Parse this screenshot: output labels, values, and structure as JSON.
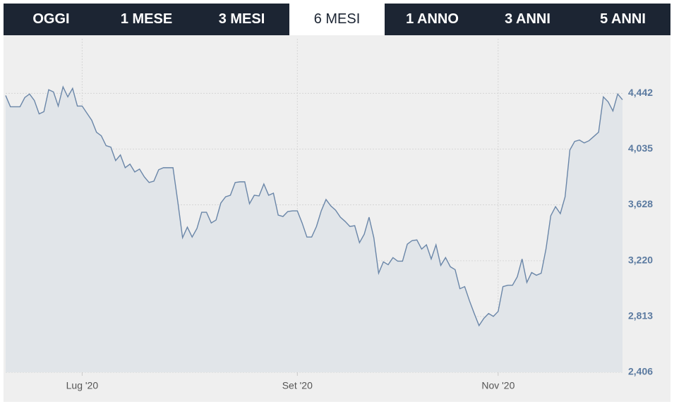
{
  "tabs": [
    "OGGI",
    "1 MESE",
    "3 MESI",
    "6 MESI",
    "1 ANNO",
    "3 ANNI",
    "5 ANNI"
  ],
  "chart_data": {
    "type": "line",
    "categories": [
      null,
      null,
      null,
      null,
      null,
      null,
      null,
      null,
      null,
      null,
      null,
      null,
      null,
      null,
      null,
      null,
      "Lug '20",
      null,
      null,
      null,
      null,
      null,
      null,
      null,
      null,
      null,
      null,
      null,
      null,
      null,
      null,
      null,
      null,
      null,
      null,
      null,
      null,
      null,
      null,
      null,
      null,
      null,
      null,
      null,
      null,
      null,
      null,
      null,
      null,
      null,
      null,
      null,
      null,
      null,
      null,
      null,
      null,
      null,
      null,
      null,
      null,
      "Set '20",
      null,
      null,
      null,
      null,
      null,
      null,
      null,
      null,
      null,
      null,
      null,
      null,
      null,
      null,
      null,
      null,
      null,
      null,
      null,
      null,
      null,
      null,
      null,
      null,
      null,
      null,
      null,
      null,
      null,
      null,
      null,
      null,
      null,
      null,
      null,
      null,
      null,
      null,
      null,
      null,
      null,
      "Nov '20",
      null,
      null,
      null,
      null,
      null,
      null,
      null,
      null,
      null,
      null,
      null,
      null,
      null,
      null,
      null,
      null,
      null,
      null,
      null,
      null,
      null,
      null,
      null,
      null,
      null,
      null
    ],
    "series": [
      {
        "color": "#6a86a8",
        "values": [
          4426,
          4344,
          4344,
          4344,
          4411,
          4437,
          4390,
          4292,
          4308,
          4468,
          4452,
          4349,
          4489,
          4416,
          4478,
          4349,
          4349,
          4297,
          4246,
          4158,
          4132,
          4060,
          4049,
          3951,
          3992,
          3899,
          3925,
          3868,
          3889,
          3832,
          3791,
          3801,
          3884,
          3899,
          3899,
          3899,
          3651,
          3388,
          3465,
          3393,
          3455,
          3574,
          3574,
          3496,
          3517,
          3641,
          3687,
          3698,
          3791,
          3796,
          3796,
          3636,
          3698,
          3693,
          3780,
          3698,
          3713,
          3553,
          3543,
          3579,
          3584,
          3584,
          3496,
          3393,
          3393,
          3470,
          3584,
          3667,
          3620,
          3589,
          3538,
          3507,
          3470,
          3476,
          3352,
          3414,
          3538,
          3388,
          3129,
          3212,
          3191,
          3243,
          3217,
          3217,
          3341,
          3367,
          3372,
          3305,
          3336,
          3233,
          3336,
          3186,
          3243,
          3176,
          3155,
          3016,
          3031,
          2928,
          2835,
          2747,
          2799,
          2835,
          2814,
          2850,
          3031,
          3041,
          3041,
          3103,
          3233,
          3062,
          3134,
          3114,
          3129,
          3305,
          3548,
          3615,
          3564,
          3687,
          4029,
          4091,
          4101,
          4080,
          4096,
          4127,
          4158,
          4416,
          4380,
          4313,
          4437,
          4395
        ]
      }
    ],
    "ylim": [
      2406,
      4840
    ],
    "yticks": [
      {
        "value": 2406,
        "label": "2,406"
      },
      {
        "value": 2813,
        "label": "2,813"
      },
      {
        "value": 3220,
        "label": "3,220"
      },
      {
        "value": 3628,
        "label": "3,628"
      },
      {
        "value": 4035,
        "label": "4,035"
      },
      {
        "value": 4442,
        "label": "4,442"
      }
    ],
    "grid": true
  }
}
